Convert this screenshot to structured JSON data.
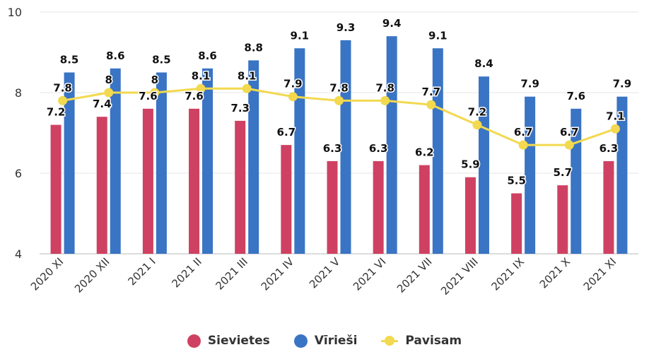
{
  "chart_data": {
    "type": "bar",
    "categories": [
      "2020 XI",
      "2020 XII",
      "2021 I",
      "2021 II",
      "2021 III",
      "2021 IV",
      "2021 V",
      "2021 VI",
      "2021 VII",
      "2021 VIII",
      "2021 IX",
      "2021 X",
      "2021 XI"
    ],
    "series": [
      {
        "name": "Sievietes",
        "type": "bar",
        "color": "#cf4162",
        "values": [
          7.2,
          7.4,
          7.6,
          7.6,
          7.3,
          6.7,
          6.3,
          6.3,
          6.2,
          5.9,
          5.5,
          5.7,
          6.3
        ]
      },
      {
        "name": "Vīrieši",
        "type": "bar",
        "color": "#3a74c4",
        "values": [
          8.5,
          8.6,
          8.5,
          8.6,
          8.8,
          9.1,
          9.3,
          9.4,
          9.1,
          8.4,
          7.9,
          7.6,
          7.9
        ]
      },
      {
        "name": "Pavisam",
        "type": "line",
        "color": "#f2d94f",
        "values": [
          7.8,
          8,
          8,
          8.1,
          8.1,
          7.9,
          7.8,
          7.8,
          7.7,
          7.2,
          6.7,
          6.7,
          7.1
        ]
      }
    ],
    "ylim": [
      4,
      10
    ],
    "yticks": [
      4,
      6,
      8,
      10
    ],
    "grid": true,
    "legend": "bottom",
    "title": "",
    "xlabel": "",
    "ylabel": ""
  }
}
